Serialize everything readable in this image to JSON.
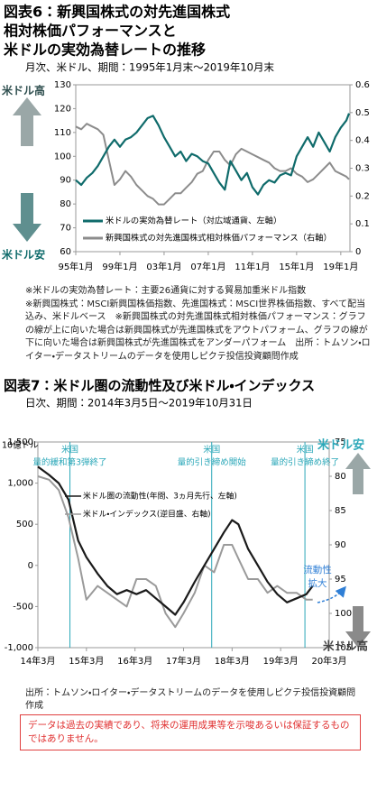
{
  "chart_data": [
    {
      "type": "line",
      "title_lines": [
        "図表6：新興国株式の対先進国株式",
        "相対株価パフォーマンスと",
        "米ドルの実効為替レートの推移"
      ],
      "subtitle": "月次、米ドル、期間：1995年1月末～2019年10月末",
      "x": [
        1995,
        1995.5,
        1996,
        1996.5,
        1997,
        1997.5,
        1998,
        1998.5,
        1999,
        1999.5,
        2000,
        2000.5,
        2001,
        2001.5,
        2002,
        2002.5,
        2003,
        2003.5,
        2004,
        2004.5,
        2005,
        2005.5,
        2006,
        2006.5,
        2007,
        2007.5,
        2008,
        2008.5,
        2009,
        2009.5,
        2010,
        2010.5,
        2011,
        2011.5,
        2012,
        2012.5,
        2013,
        2013.5,
        2014,
        2014.5,
        2015,
        2015.5,
        2016,
        2016.5,
        2017,
        2017.5,
        2018,
        2018.5,
        2019,
        2019.5,
        2019.75
      ],
      "xlim": [
        1995,
        2019.83
      ],
      "xticks": [
        {
          "value": 1995,
          "label": "95年1月"
        },
        {
          "value": 1999,
          "label": "99年1月"
        },
        {
          "value": 2003,
          "label": "03年1月"
        },
        {
          "value": 2007,
          "label": "07年1月"
        },
        {
          "value": 2011,
          "label": "11年1月"
        },
        {
          "value": 2015,
          "label": "15年1月"
        },
        {
          "value": 2019,
          "label": "19年1月"
        }
      ],
      "ylim": [
        60,
        130
      ],
      "yticks": [
        60,
        70,
        80,
        90,
        100,
        110,
        120,
        130
      ],
      "y2lim": [
        0,
        0.6
      ],
      "y2ticks": [
        0,
        0.1,
        0.2,
        0.3,
        0.4,
        0.5,
        0.6
      ],
      "series": [
        {
          "name": "米ドルの実効為替レート（対広域通貨、左軸）",
          "color": "#0f6b6b",
          "values": [
            90,
            88,
            91,
            93,
            96,
            100,
            104,
            107,
            104,
            107,
            108,
            110,
            113,
            116,
            117,
            113,
            108,
            104,
            100,
            102,
            98,
            101,
            100,
            98,
            97,
            93,
            89,
            86,
            98,
            94,
            90,
            93,
            87,
            84,
            88,
            90,
            89,
            92,
            93,
            92,
            100,
            104,
            108,
            104,
            110,
            106,
            102,
            108,
            112,
            115,
            118
          ]
        },
        {
          "name": "新興国株式の対先進国株式相対株価パフォーマンス（右軸）",
          "color": "#8c8c8c",
          "axis": "y2",
          "values": [
            0.45,
            0.44,
            0.46,
            0.45,
            0.44,
            0.42,
            0.33,
            0.24,
            0.26,
            0.29,
            0.27,
            0.24,
            0.22,
            0.2,
            0.19,
            0.17,
            0.17,
            0.19,
            0.21,
            0.21,
            0.23,
            0.25,
            0.28,
            0.29,
            0.33,
            0.36,
            0.36,
            0.33,
            0.31,
            0.35,
            0.37,
            0.36,
            0.35,
            0.34,
            0.33,
            0.32,
            0.3,
            0.29,
            0.29,
            0.3,
            0.28,
            0.27,
            0.25,
            0.26,
            0.28,
            0.3,
            0.32,
            0.29,
            0.28,
            0.27,
            0.26
          ]
        }
      ],
      "legend": "lower left",
      "annotations": [
        {
          "text": "米ドル高"
        },
        {
          "text": "米ドル安"
        }
      ],
      "notes": [
        "※米ドルの実効為替レート：主要26通貨に対する貿易加重米ドル指数",
        "※新興国株式：MSCI新興国株価指数、先進国株式：MSCI世界株価指数、すべて配当込み、米ドルベース　※新興国株式の対先進国株式相対株価パフォーマンス：グラフの線が上に向いた場合は新興国株式が先進国株式をアウトパフォーム、グラフの線が下に向いた場合は新興国株式が先進国株式をアンダーパフォーム　出所：トムソン・ロイター・データストリームのデータを使用しピクテ投信投資顧問作成"
      ]
    },
    {
      "type": "line",
      "title": "図表7：米ドル圏の流動性及び米ドル・インデックス",
      "subtitle": "日次、期間：2014年3月5日～2019年10月31日",
      "y_label": "10億ドル",
      "x": [
        2014.17,
        2014.4,
        2014.6,
        2014.8,
        2015,
        2015.17,
        2015.4,
        2015.6,
        2015.8,
        2016,
        2016.2,
        2016.4,
        2016.6,
        2016.8,
        2017,
        2017.17,
        2017.4,
        2017.6,
        2017.8,
        2018,
        2018.17,
        2018.3,
        2018.5,
        2018.7,
        2018.9,
        2019.1,
        2019.3,
        2019.5,
        2019.7,
        2019.83
      ],
      "xlim": [
        2014.17,
        2020.17
      ],
      "xticks": [
        {
          "value": 2014.17,
          "label": "14年3月"
        },
        {
          "value": 2015.17,
          "label": "15年3月"
        },
        {
          "value": 2016.17,
          "label": "16年3月"
        },
        {
          "value": 2017.17,
          "label": "17年3月"
        },
        {
          "value": 2018.17,
          "label": "18年3月"
        },
        {
          "value": 2019.17,
          "label": "19年3月"
        },
        {
          "value": 2020.17,
          "label": "20年3月"
        }
      ],
      "ylim": [
        -1000,
        1500
      ],
      "yticks": [
        {
          "value": -1000,
          "label": "-1,000"
        },
        -500,
        0,
        500,
        {
          "value": 1000,
          "label": "1,000"
        },
        {
          "value": 1500,
          "label": "1,500"
        }
      ],
      "y2lim": [
        105,
        75
      ],
      "y2ticks": [
        75,
        80,
        85,
        90,
        95,
        100,
        105
      ],
      "series": [
        {
          "name": "米ドル圏の流動性(年間、3ヵ月先行、左軸)",
          "color": "#1a1a1a",
          "values": [
            1200,
            1100,
            1000,
            800,
            300,
            100,
            -100,
            -250,
            -350,
            -300,
            -350,
            -300,
            -400,
            -500,
            -600,
            -450,
            -200,
            0,
            200,
            400,
            550,
            500,
            200,
            0,
            -200,
            -350,
            -450,
            -400,
            -350,
            -250
          ]
        },
        {
          "name": "米ドル・インデックス(逆目盛、右軸)",
          "color": "#9a9a9a",
          "axis": "y2",
          "values": [
            80,
            80.5,
            82,
            86,
            92,
            98,
            96,
            97,
            98,
            99,
            95,
            95,
            96,
            100,
            102,
            100,
            97,
            93,
            94,
            90,
            90,
            92,
            95,
            95,
            97,
            96,
            97,
            97,
            98,
            98
          ]
        }
      ],
      "legend": "upper left",
      "events": [
        {
          "x": 2014.83,
          "label": [
            "米国",
            "量的緩和第3弾終了"
          ],
          "color": "#2aa7b8"
        },
        {
          "x": 2017.75,
          "label": [
            "米国",
            "量的引き締め開始"
          ],
          "color": "#2aa7b8"
        },
        {
          "x": 2019.67,
          "label": [
            "米国",
            "量的引き締め終了"
          ],
          "color": "#2aa7b8"
        }
      ],
      "annotations": [
        {
          "text": "米ドル安"
        },
        {
          "text": "米ドル高"
        },
        {
          "text": [
            "流動性",
            "拡大"
          ]
        }
      ],
      "source": "出所：トムソン・ロイター・データストリームのデータを使用しピクテ投信投資顧問作成"
    }
  ],
  "disclaimer": "データは過去の実績であり、将来の運用成果等を示唆あるいは保証するものではありません。"
}
